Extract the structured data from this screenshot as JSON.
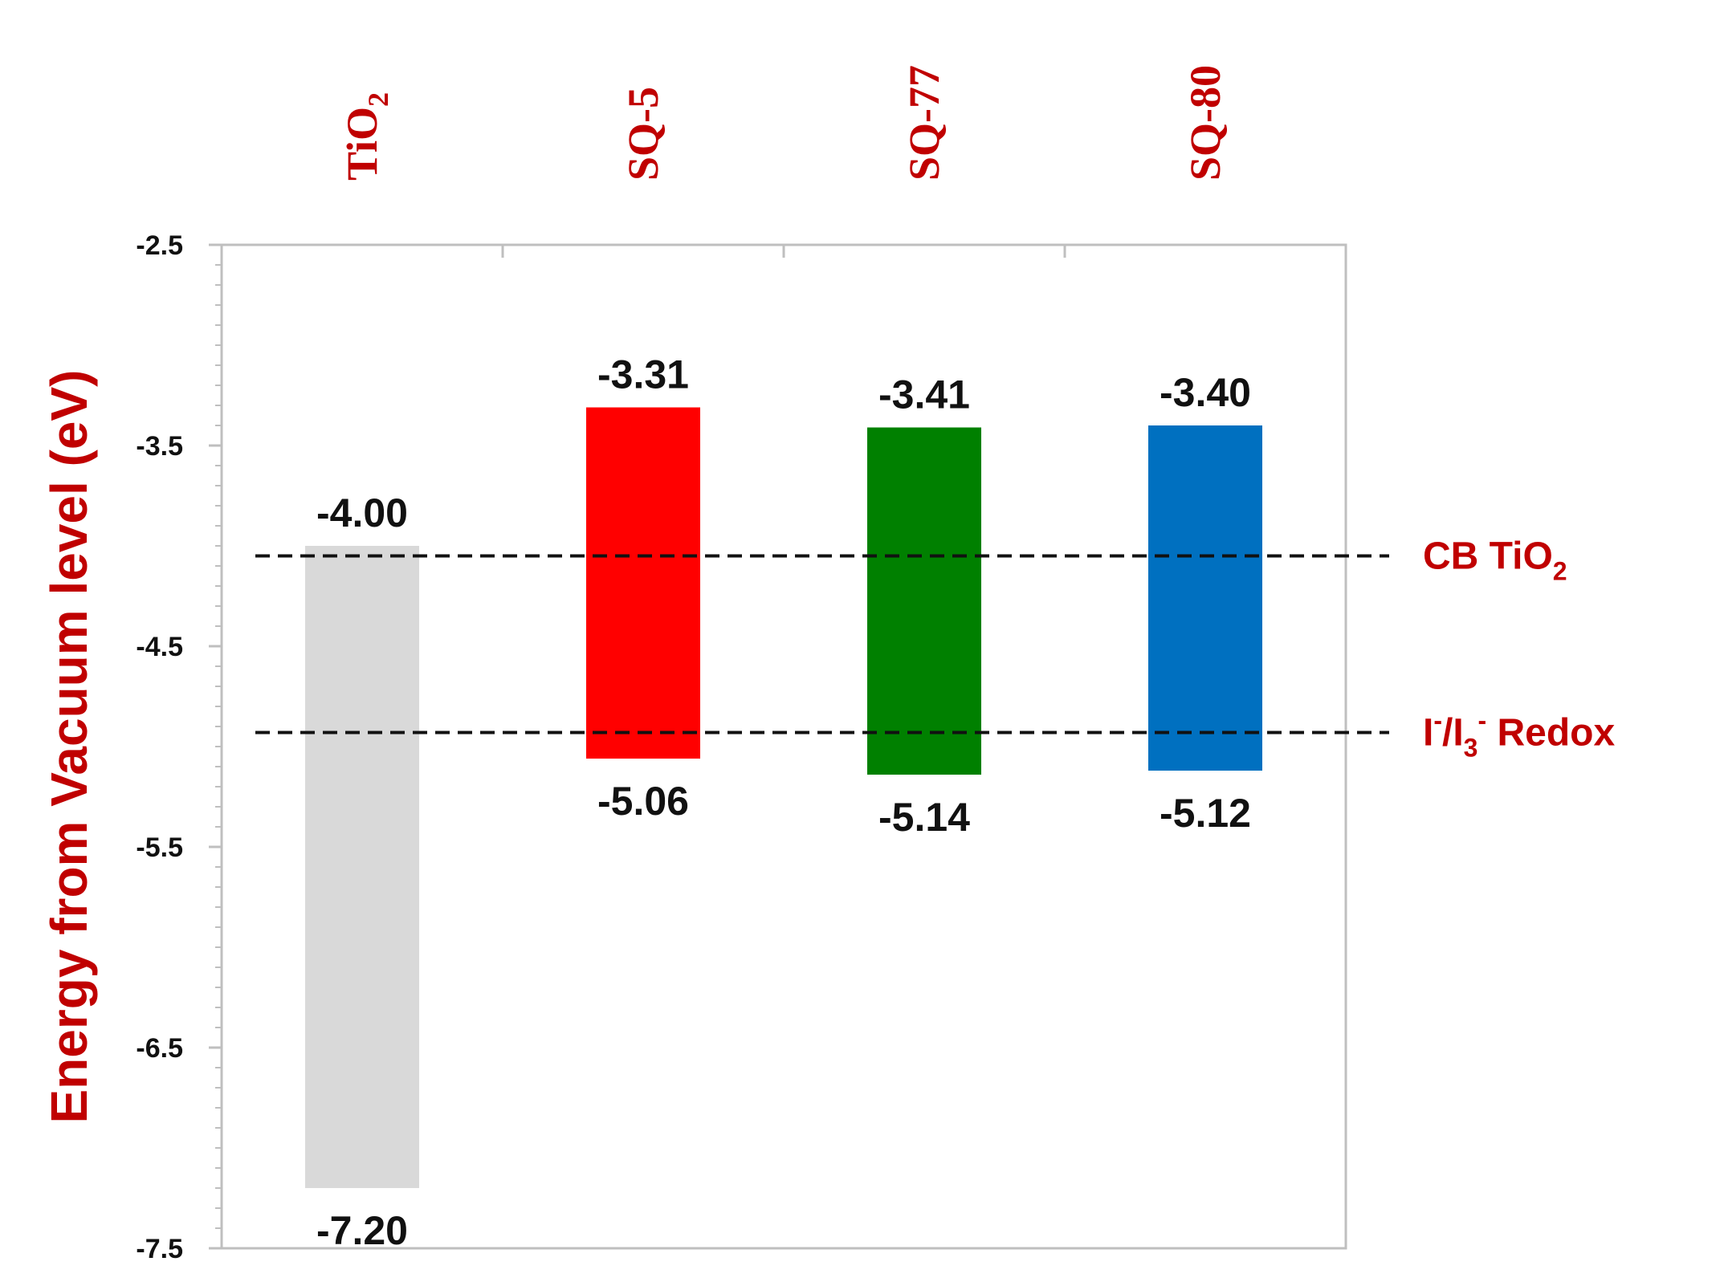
{
  "chart_data": {
    "type": "bar",
    "title": "",
    "xlabel": "",
    "ylabel": "Energy from Vacuum level (eV)",
    "ylim": [
      -7.5,
      -2.5
    ],
    "yticks": [
      "-2.5",
      "-3.5",
      "-4.5",
      "-5.5",
      "-6.5",
      "-7.5"
    ],
    "grid": false,
    "legend": "none",
    "categories": [
      {
        "name": "TiO",
        "sub": "2"
      },
      {
        "name": "SQ-5",
        "sub": ""
      },
      {
        "name": "SQ-77",
        "sub": ""
      },
      {
        "name": "SQ-80",
        "sub": ""
      }
    ],
    "bars": [
      {
        "top": -4.0,
        "bottom": -7.2,
        "top_label": "-4.00",
        "bottom_label": "-7.20",
        "color": "#d9d9d9"
      },
      {
        "top": -3.31,
        "bottom": -5.06,
        "top_label": "-3.31",
        "bottom_label": "-5.06",
        "color": "#ff0000"
      },
      {
        "top": -3.41,
        "bottom": -5.14,
        "top_label": "-3.41",
        "bottom_label": "-5.14",
        "color": "#008000"
      },
      {
        "top": -3.4,
        "bottom": -5.12,
        "top_label": "-3.40",
        "bottom_label": "-5.12",
        "color": "#0070c0"
      }
    ],
    "reference_lines": [
      {
        "value": -4.05,
        "label": "CB TiO",
        "sub": "2",
        "sup": "",
        "suffix": "",
        "style": "dashed"
      },
      {
        "value": -4.93,
        "label": "I",
        "sup": "-",
        "mid": "/I",
        "sub": "3",
        "sup2": "-",
        "suffix": " Redox",
        "style": "dashed"
      }
    ],
    "colors": {
      "label_red": "#c00000",
      "axis": "#bfbfbf",
      "text": "#111111",
      "dash": "#111111"
    }
  }
}
